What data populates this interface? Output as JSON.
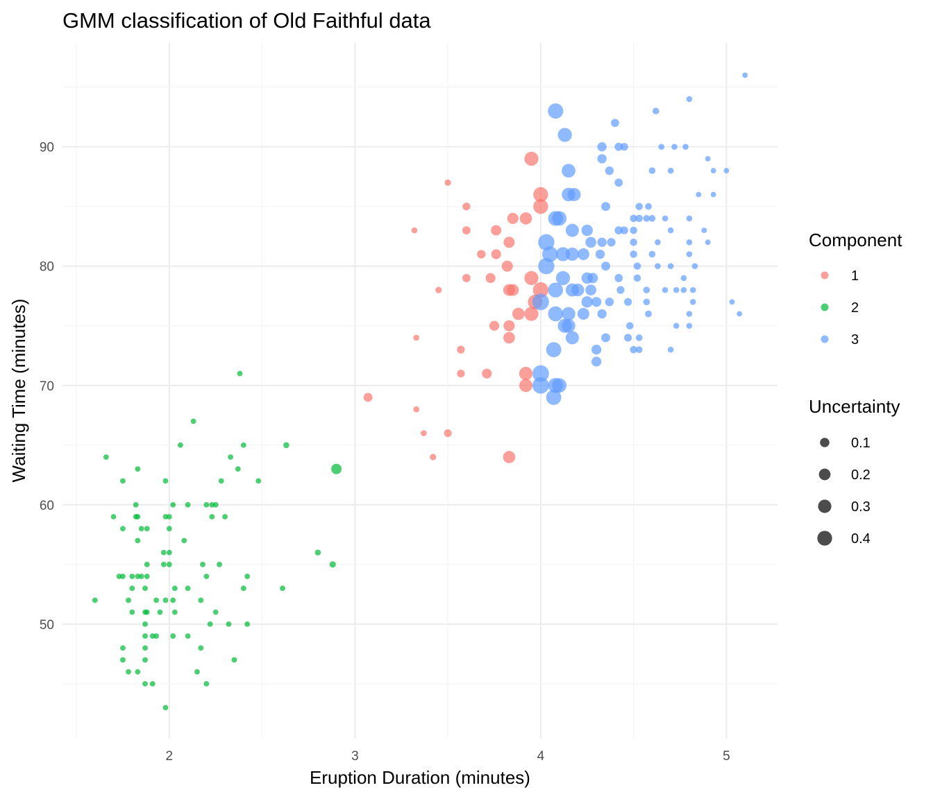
{
  "chart_data": {
    "type": "scatter",
    "title": "GMM classification of Old Faithful data",
    "xlabel": "Eruption Duration (minutes)",
    "ylabel": "Waiting Time (minutes)",
    "xlim": [
      1.425,
      5.275
    ],
    "ylim": [
      40.4,
      98.7
    ],
    "xticks": [
      2,
      3,
      4,
      5
    ],
    "yticks": [
      50,
      60,
      70,
      80,
      90
    ],
    "grid": true,
    "legend_placement": "right",
    "colors": {
      "1": "#F8766D",
      "2": "#00BA38",
      "3": "#619CFF"
    },
    "legend_component": {
      "title": "Component",
      "entries": [
        "1",
        "2",
        "3"
      ]
    },
    "legend_uncertainty": {
      "title": "Uncertainty",
      "entries": [
        "0.1",
        "0.2",
        "0.3",
        "0.4"
      ],
      "values": [
        0.1,
        0.2,
        0.3,
        0.4
      ]
    },
    "point_fields": [
      "eruptions",
      "waiting",
      "component",
      "uncertainty"
    ],
    "points": [
      [
        1.6,
        52,
        2,
        0.005
      ],
      [
        1.66,
        64,
        2,
        0.005
      ],
      [
        1.7,
        59,
        2,
        0.005
      ],
      [
        1.73,
        54,
        2,
        0.005
      ],
      [
        1.75,
        62,
        2,
        0.005
      ],
      [
        1.75,
        58,
        2,
        0.005
      ],
      [
        1.75,
        54,
        2,
        0.005
      ],
      [
        1.75,
        48,
        2,
        0.005
      ],
      [
        1.75,
        47,
        2,
        0.005
      ],
      [
        1.78,
        52,
        2,
        0.005
      ],
      [
        1.78,
        46,
        2,
        0.005
      ],
      [
        1.8,
        54,
        2,
        0.005
      ],
      [
        1.8,
        53,
        2,
        0.005
      ],
      [
        1.8,
        51,
        2,
        0.005
      ],
      [
        1.82,
        60,
        2,
        0.005
      ],
      [
        1.82,
        59,
        2,
        0.005
      ],
      [
        1.83,
        63,
        2,
        0.005
      ],
      [
        1.83,
        59,
        2,
        0.005
      ],
      [
        1.83,
        57,
        2,
        0.005
      ],
      [
        1.83,
        54,
        2,
        0.005
      ],
      [
        1.83,
        46,
        2,
        0.005
      ],
      [
        1.85,
        54,
        2,
        0.005
      ],
      [
        1.85,
        58,
        2,
        0.005
      ],
      [
        1.87,
        53,
        2,
        0.005
      ],
      [
        1.87,
        51,
        2,
        0.005
      ],
      [
        1.87,
        50,
        2,
        0.005
      ],
      [
        1.87,
        49,
        2,
        0.005
      ],
      [
        1.87,
        48,
        2,
        0.005
      ],
      [
        1.87,
        47,
        2,
        0.005
      ],
      [
        1.87,
        45,
        2,
        0.005
      ],
      [
        1.88,
        58,
        2,
        0.005
      ],
      [
        1.88,
        55,
        2,
        0.005
      ],
      [
        1.88,
        54,
        2,
        0.005
      ],
      [
        1.88,
        51,
        2,
        0.005
      ],
      [
        1.91,
        45,
        2,
        0.005
      ],
      [
        1.91,
        49,
        2,
        0.005
      ],
      [
        1.93,
        49,
        2,
        0.005
      ],
      [
        1.93,
        52,
        2,
        0.005
      ],
      [
        1.95,
        51,
        2,
        0.005
      ],
      [
        1.97,
        56,
        2,
        0.005
      ],
      [
        1.97,
        55,
        2,
        0.005
      ],
      [
        1.98,
        62,
        2,
        0.005
      ],
      [
        1.98,
        59,
        2,
        0.005
      ],
      [
        1.98,
        52,
        2,
        0.005
      ],
      [
        1.98,
        43,
        2,
        0.005
      ],
      [
        2.0,
        59,
        2,
        0.005
      ],
      [
        2.0,
        58,
        2,
        0.005
      ],
      [
        2.0,
        56,
        2,
        0.005
      ],
      [
        2.0,
        55,
        2,
        0.005
      ],
      [
        2.02,
        60,
        2,
        0.005
      ],
      [
        2.02,
        52,
        2,
        0.005
      ],
      [
        2.02,
        49,
        2,
        0.005
      ],
      [
        2.03,
        53,
        2,
        0.005
      ],
      [
        2.03,
        51,
        2,
        0.005
      ],
      [
        2.06,
        65,
        2,
        0.005
      ],
      [
        2.08,
        57,
        2,
        0.005
      ],
      [
        2.1,
        60,
        2,
        0.005
      ],
      [
        2.1,
        53,
        2,
        0.005
      ],
      [
        2.1,
        49,
        2,
        0.005
      ],
      [
        2.13,
        67,
        2,
        0.005
      ],
      [
        2.15,
        46,
        2,
        0.005
      ],
      [
        2.17,
        52,
        2,
        0.005
      ],
      [
        2.17,
        48,
        2,
        0.005
      ],
      [
        2.18,
        55,
        2,
        0.005
      ],
      [
        2.2,
        60,
        2,
        0.005
      ],
      [
        2.2,
        54,
        2,
        0.005
      ],
      [
        2.2,
        45,
        2,
        0.005
      ],
      [
        2.22,
        50,
        2,
        0.005
      ],
      [
        2.23,
        60,
        2,
        0.005
      ],
      [
        2.23,
        59,
        2,
        0.005
      ],
      [
        2.25,
        60,
        2,
        0.005
      ],
      [
        2.25,
        51,
        2,
        0.005
      ],
      [
        2.27,
        55,
        2,
        0.005
      ],
      [
        2.28,
        62,
        2,
        0.005
      ],
      [
        2.3,
        59,
        2,
        0.005
      ],
      [
        2.32,
        50,
        2,
        0.005
      ],
      [
        2.33,
        64,
        2,
        0.005
      ],
      [
        2.35,
        47,
        2,
        0.005
      ],
      [
        2.37,
        63,
        2,
        0.005
      ],
      [
        2.38,
        71,
        2,
        0.005
      ],
      [
        2.4,
        65,
        2,
        0.005
      ],
      [
        2.4,
        53,
        2,
        0.005
      ],
      [
        2.42,
        54,
        2,
        0.005
      ],
      [
        2.42,
        50,
        2,
        0.005
      ],
      [
        2.48,
        62,
        2,
        0.005
      ],
      [
        2.61,
        53,
        2,
        0.005
      ],
      [
        2.63,
        65,
        2,
        0.01
      ],
      [
        2.8,
        56,
        2,
        0.01
      ],
      [
        2.88,
        55,
        2,
        0.015
      ],
      [
        2.9,
        63,
        2,
        0.12
      ],
      [
        3.07,
        69,
        1,
        0.07
      ],
      [
        3.32,
        83,
        1,
        0.01
      ],
      [
        3.33,
        74,
        1,
        0.01
      ],
      [
        3.33,
        68,
        1,
        0.01
      ],
      [
        3.37,
        66,
        1,
        0.01
      ],
      [
        3.42,
        64,
        1,
        0.015
      ],
      [
        3.45,
        78,
        1,
        0.015
      ],
      [
        3.5,
        87,
        1,
        0.015
      ],
      [
        3.5,
        66,
        1,
        0.04
      ],
      [
        3.57,
        73,
        1,
        0.04
      ],
      [
        3.57,
        71,
        1,
        0.04
      ],
      [
        3.6,
        85,
        1,
        0.04
      ],
      [
        3.6,
        83,
        1,
        0.05
      ],
      [
        3.6,
        79,
        1,
        0.05
      ],
      [
        3.68,
        81,
        1,
        0.06
      ],
      [
        3.71,
        71,
        1,
        0.1
      ],
      [
        3.73,
        79,
        1,
        0.1
      ],
      [
        3.75,
        75,
        1,
        0.1
      ],
      [
        3.76,
        83,
        1,
        0.12
      ],
      [
        3.76,
        81,
        1,
        0.1
      ],
      [
        3.82,
        80,
        1,
        0.15
      ],
      [
        3.83,
        82,
        1,
        0.15
      ],
      [
        3.83,
        75,
        1,
        0.15
      ],
      [
        3.83,
        74,
        1,
        0.17
      ],
      [
        3.83,
        64,
        1,
        0.2
      ],
      [
        3.83,
        78,
        1,
        0.18
      ],
      [
        3.85,
        84,
        1,
        0.15
      ],
      [
        3.85,
        78,
        1,
        0.18
      ],
      [
        3.88,
        76,
        1,
        0.2
      ],
      [
        3.92,
        84,
        1,
        0.2
      ],
      [
        3.92,
        71,
        1,
        0.26
      ],
      [
        3.92,
        70,
        1,
        0.25
      ],
      [
        3.95,
        89,
        1,
        0.3
      ],
      [
        3.95,
        79,
        1,
        0.3
      ],
      [
        3.95,
        76,
        1,
        0.3
      ],
      [
        3.97,
        77,
        1,
        0.33
      ],
      [
        4.0,
        86,
        1,
        0.35
      ],
      [
        4.0,
        85,
        1,
        0.35
      ],
      [
        4.0,
        78,
        1,
        0.4
      ],
      [
        4.08,
        93,
        3,
        0.38
      ],
      [
        4.13,
        91,
        3,
        0.3
      ],
      [
        4.15,
        88,
        3,
        0.28
      ],
      [
        4.15,
        86,
        3,
        0.27
      ],
      [
        4.18,
        86,
        3,
        0.25
      ],
      [
        4.08,
        84,
        3,
        0.35
      ],
      [
        4.1,
        84,
        3,
        0.33
      ],
      [
        4.17,
        83,
        3,
        0.25
      ],
      [
        4.03,
        82,
        3,
        0.45
      ],
      [
        4.05,
        81,
        3,
        0.4
      ],
      [
        4.12,
        81,
        3,
        0.3
      ],
      [
        4.17,
        81,
        3,
        0.25
      ],
      [
        4.03,
        80,
        3,
        0.45
      ],
      [
        4.12,
        79,
        3,
        0.3
      ],
      [
        4.0,
        77,
        3,
        0.47
      ],
      [
        4.08,
        78,
        3,
        0.36
      ],
      [
        4.17,
        78,
        3,
        0.25
      ],
      [
        4.2,
        78,
        3,
        0.22
      ],
      [
        4.08,
        76,
        3,
        0.36
      ],
      [
        4.15,
        76,
        3,
        0.27
      ],
      [
        4.13,
        75,
        3,
        0.3
      ],
      [
        4.15,
        75,
        3,
        0.27
      ],
      [
        4.17,
        74,
        3,
        0.25
      ],
      [
        4.07,
        73,
        3,
        0.37
      ],
      [
        4.0,
        71,
        3,
        0.47
      ],
      [
        4.0,
        70,
        3,
        0.47
      ],
      [
        4.08,
        70,
        3,
        0.36
      ],
      [
        4.1,
        70,
        3,
        0.33
      ],
      [
        4.07,
        69,
        3,
        0.37
      ],
      [
        4.23,
        81,
        3,
        0.18
      ],
      [
        4.25,
        83,
        3,
        0.16
      ],
      [
        4.27,
        82,
        3,
        0.14
      ],
      [
        4.23,
        76,
        3,
        0.18
      ],
      [
        4.25,
        79,
        3,
        0.16
      ],
      [
        4.25,
        77,
        3,
        0.16
      ],
      [
        4.27,
        78,
        3,
        0.14
      ],
      [
        4.28,
        79,
        3,
        0.12
      ],
      [
        4.3,
        77,
        3,
        0.1
      ],
      [
        4.3,
        73,
        3,
        0.1
      ],
      [
        4.3,
        72,
        3,
        0.1
      ],
      [
        4.32,
        81,
        3,
        0.08
      ],
      [
        4.33,
        90,
        3,
        0.08
      ],
      [
        4.33,
        89,
        3,
        0.08
      ],
      [
        4.33,
        82,
        3,
        0.08
      ],
      [
        4.33,
        76,
        3,
        0.08
      ],
      [
        4.35,
        85,
        3,
        0.07
      ],
      [
        4.35,
        80,
        3,
        0.07
      ],
      [
        4.35,
        74,
        3,
        0.07
      ],
      [
        4.37,
        88,
        3,
        0.06
      ],
      [
        4.37,
        77,
        3,
        0.06
      ],
      [
        4.38,
        82,
        3,
        0.06
      ],
      [
        4.4,
        92,
        3,
        0.05
      ],
      [
        4.42,
        90,
        3,
        0.05
      ],
      [
        4.42,
        87,
        3,
        0.05
      ],
      [
        4.42,
        83,
        3,
        0.05
      ],
      [
        4.42,
        79,
        3,
        0.05
      ],
      [
        4.43,
        78,
        3,
        0.04
      ],
      [
        4.45,
        90,
        3,
        0.04
      ],
      [
        4.45,
        83,
        3,
        0.04
      ],
      [
        4.47,
        77,
        3,
        0.04
      ],
      [
        4.47,
        74,
        3,
        0.04
      ],
      [
        4.48,
        75,
        3,
        0.03
      ],
      [
        4.5,
        84,
        3,
        0.03
      ],
      [
        4.5,
        83,
        3,
        0.03
      ],
      [
        4.5,
        82,
        3,
        0.03
      ],
      [
        4.5,
        81,
        3,
        0.03
      ],
      [
        4.5,
        73,
        3,
        0.03
      ],
      [
        4.52,
        80,
        3,
        0.03
      ],
      [
        4.52,
        79,
        3,
        0.03
      ],
      [
        4.53,
        85,
        3,
        0.03
      ],
      [
        4.53,
        84,
        3,
        0.03
      ],
      [
        4.53,
        74,
        3,
        0.02
      ],
      [
        4.53,
        73,
        3,
        0.02
      ],
      [
        4.57,
        84,
        3,
        0.02
      ],
      [
        4.57,
        78,
        3,
        0.02
      ],
      [
        4.57,
        77,
        3,
        0.02
      ],
      [
        4.58,
        85,
        3,
        0.02
      ],
      [
        4.58,
        76,
        3,
        0.02
      ],
      [
        4.6,
        88,
        3,
        0.02
      ],
      [
        4.6,
        84,
        3,
        0.02
      ],
      [
        4.6,
        81,
        3,
        0.02
      ],
      [
        4.62,
        93,
        3,
        0.02
      ],
      [
        4.63,
        82,
        3,
        0.01
      ],
      [
        4.63,
        80,
        3,
        0.01
      ],
      [
        4.65,
        90,
        3,
        0.01
      ],
      [
        4.67,
        84,
        3,
        0.01
      ],
      [
        4.67,
        78,
        3,
        0.01
      ],
      [
        4.7,
        88,
        3,
        0.01
      ],
      [
        4.7,
        83,
        3,
        0.01
      ],
      [
        4.7,
        80,
        3,
        0.01
      ],
      [
        4.7,
        73,
        3,
        0.01
      ],
      [
        4.72,
        90,
        3,
        0.01
      ],
      [
        4.73,
        78,
        3,
        0.01
      ],
      [
        4.73,
        75,
        3,
        0.01
      ],
      [
        4.77,
        79,
        3,
        0.01
      ],
      [
        4.77,
        78,
        3,
        0.01
      ],
      [
        4.78,
        90,
        3,
        0.01
      ],
      [
        4.8,
        94,
        3,
        0.01
      ],
      [
        4.8,
        84,
        3,
        0.01
      ],
      [
        4.8,
        82,
        3,
        0.01
      ],
      [
        4.8,
        81,
        3,
        0.01
      ],
      [
        4.8,
        76,
        3,
        0.01
      ],
      [
        4.8,
        75,
        3,
        0.01
      ],
      [
        4.82,
        78,
        3,
        0.01
      ],
      [
        4.82,
        77,
        3,
        0.01
      ],
      [
        4.83,
        80,
        3,
        0.01
      ],
      [
        4.85,
        86,
        3,
        0.005
      ],
      [
        4.88,
        83,
        3,
        0.005
      ],
      [
        4.9,
        89,
        3,
        0.005
      ],
      [
        4.9,
        82,
        3,
        0.005
      ],
      [
        4.93,
        88,
        3,
        0.005
      ],
      [
        4.93,
        86,
        3,
        0.005
      ],
      [
        5.0,
        88,
        3,
        0.005
      ],
      [
        5.03,
        77,
        3,
        0.005
      ],
      [
        5.07,
        76,
        3,
        0.005
      ],
      [
        5.1,
        96,
        3,
        0.005
      ]
    ]
  }
}
